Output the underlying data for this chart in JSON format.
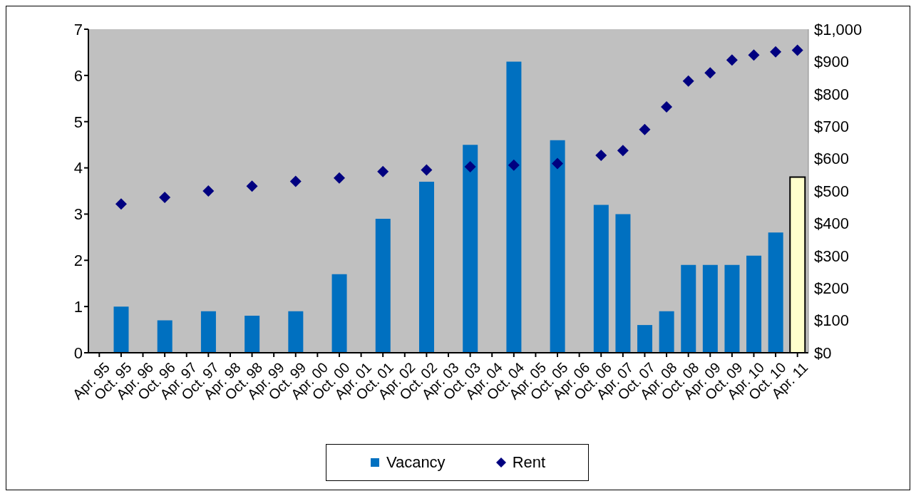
{
  "chart_data": {
    "type": "bar",
    "categories": [
      "Apr. 95",
      "Oct. 95",
      "Apr. 96",
      "Oct. 96",
      "Apr. 97",
      "Oct. 97",
      "Apr. 98",
      "Oct. 98",
      "Apr. 99",
      "Oct. 99",
      "Apr. 00",
      "Oct. 00",
      "Apr. 01",
      "Oct. 01",
      "Apr. 02",
      "Oct. 02",
      "Apr. 03",
      "Oct. 03",
      "Apr. 04",
      "Oct. 04",
      "Apr. 05",
      "Oct. 05",
      "Apr. 06",
      "Oct. 06",
      "Apr. 07",
      "Oct. 07",
      "Apr. 08",
      "Oct. 08",
      "Apr. 09",
      "Oct. 09",
      "Apr. 10",
      "Oct. 10",
      "Apr. 11"
    ],
    "series": [
      {
        "name": "Vacancy",
        "color": "#0070c0",
        "values": [
          null,
          1.0,
          null,
          0.7,
          null,
          0.9,
          null,
          0.8,
          null,
          0.9,
          null,
          1.7,
          null,
          2.9,
          null,
          3.7,
          null,
          4.5,
          null,
          6.3,
          null,
          4.6,
          null,
          3.2,
          3.0,
          0.6,
          0.9,
          1.9,
          1.9,
          1.9,
          2.1,
          2.6,
          3.8
        ],
        "colors": [
          "#0070c0",
          "#0070c0",
          "#0070c0",
          "#0070c0",
          "#0070c0",
          "#0070c0",
          "#0070c0",
          "#0070c0",
          "#0070c0",
          "#0070c0",
          "#0070c0",
          "#0070c0",
          "#0070c0",
          "#0070c0",
          "#0070c0",
          "#0070c0",
          "#0070c0",
          "#0070c0",
          "#0070c0",
          "#0070c0",
          "#0070c0",
          "#0070c0",
          "#0070c0",
          "#0070c0",
          "#0070c0",
          "#0070c0",
          "#0070c0",
          "#0070c0",
          "#0070c0",
          "#0070c0",
          "#0070c0",
          "#0070c0",
          "#ffffcc"
        ]
      },
      {
        "name": "Rent",
        "type": "scatter",
        "axis": "y2",
        "color": "#000080",
        "marker": "diamond",
        "values": [
          null,
          460,
          null,
          480,
          null,
          500,
          null,
          515,
          null,
          530,
          null,
          540,
          null,
          560,
          null,
          565,
          null,
          575,
          null,
          580,
          null,
          585,
          null,
          610,
          625,
          690,
          760,
          840,
          865,
          905,
          920,
          930,
          935
        ]
      }
    ],
    "ylim": [
      0,
      7
    ],
    "yticks": [
      0,
      1,
      2,
      3,
      4,
      5,
      6,
      7
    ],
    "y2lim": [
      0,
      1000
    ],
    "y2ticks": [
      {
        "value": 0,
        "label": "$0"
      },
      {
        "value": 100,
        "label": "$100"
      },
      {
        "value": 200,
        "label": "$200"
      },
      {
        "value": 300,
        "label": "$300"
      },
      {
        "value": 400,
        "label": "$400"
      },
      {
        "value": 500,
        "label": "$500"
      },
      {
        "value": 600,
        "label": "$600"
      },
      {
        "value": 700,
        "label": "$700"
      },
      {
        "value": 800,
        "label": "$800"
      },
      {
        "value": 900,
        "label": "$900"
      },
      {
        "value": 1000,
        "label": "$1,000"
      }
    ],
    "grid": false,
    "legend": "bottom"
  }
}
